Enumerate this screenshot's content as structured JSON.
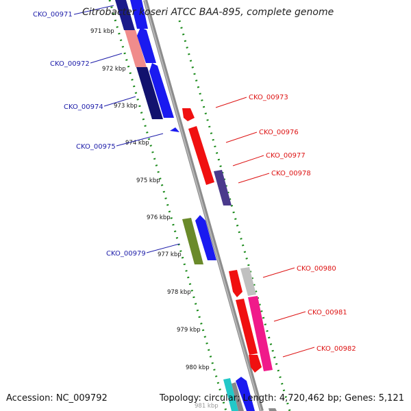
{
  "title": "Citrobacter koseri ATCC BAA-895, complete genome",
  "accession_label": "Accession: NC_009792",
  "summary_label": "Topology: circular; Length: 4,720,462 bp; Genes: 5,121",
  "colors": {
    "backbone": "#8c8c8c",
    "ticks": "#1a8a1a",
    "left_labels": "#1a1aa8",
    "right_labels": "#dd1111"
  },
  "ticks": [
    "971 kbp",
    "972 kbp",
    "973 kbp",
    "974 kbp",
    "975 kbp",
    "976 kbp",
    "977 kbp",
    "978 kbp",
    "979 kbp",
    "980 kbp",
    "981 kbp"
  ],
  "genes": [
    {
      "name": "CKO_00971",
      "strand": "minus",
      "side": "left",
      "color": "#1a1a8a"
    },
    {
      "name": "CKO_00972",
      "strand": "minus",
      "side": "left",
      "color": "#f08c8c"
    },
    {
      "name": "CKO_00974",
      "strand": "minus",
      "side": "left",
      "color": "#12126e"
    },
    {
      "name": "CKO_00975",
      "strand": "minus",
      "side": "left",
      "color": "#1a1af0"
    },
    {
      "name": "CKO_00973",
      "strand": "plus",
      "side": "right",
      "color": "#f01010"
    },
    {
      "name": "CKO_00976",
      "strand": "plus",
      "side": "right",
      "color": "#f01010"
    },
    {
      "name": "CKO_00977",
      "strand": "plus",
      "side": "right",
      "color": "#f01010"
    },
    {
      "name": "CKO_00978",
      "strand": "plus",
      "side": "right",
      "color": "#4a3a8c"
    },
    {
      "name": "CKO_00979",
      "strand": "minus",
      "side": "left",
      "color": "#6a8a2a"
    },
    {
      "name": "CKO_00980",
      "strand": "plus",
      "side": "right",
      "color": "#f01010"
    },
    {
      "name": "CKO_00981",
      "strand": "plus",
      "side": "right",
      "color": "#f01010"
    },
    {
      "name": "CKO_00982",
      "strand": "plus",
      "side": "right",
      "color": "#f01a8a"
    }
  ]
}
